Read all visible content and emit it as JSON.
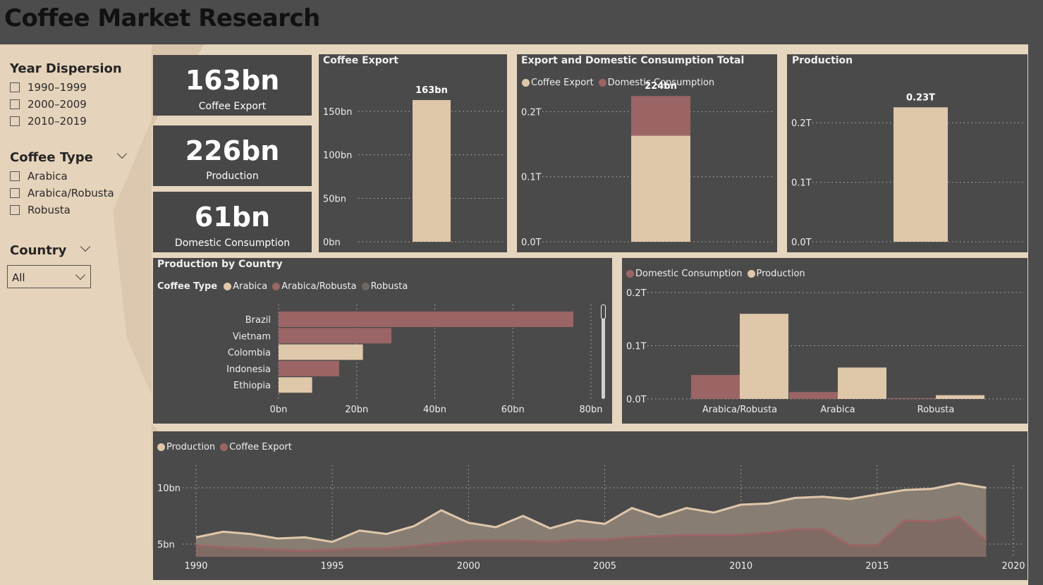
{
  "header": {
    "title": "Coffee Market Research"
  },
  "colors": {
    "beige": "#dfc7aa",
    "mauve": "#9b6565",
    "grey": "#6e6761",
    "panel": "#4b4a4a",
    "text": "#eeeeee"
  },
  "slicers": {
    "year": {
      "title": "Year Dispersion",
      "options": [
        "1990–1999",
        "2000–2009",
        "2010–2019"
      ]
    },
    "coffee_type": {
      "title": "Coffee Type",
      "options": [
        "Arabica",
        "Arabica/Robusta",
        "Robusta"
      ]
    },
    "country": {
      "title": "Country",
      "selected": "All"
    }
  },
  "kpis": [
    {
      "value": "163bn",
      "label": "Coffee Export"
    },
    {
      "value": "226bn",
      "label": "Production"
    },
    {
      "value": "61bn",
      "label": "Domestic Consumption"
    }
  ],
  "chart_data": [
    {
      "id": "coffee-export",
      "type": "bar",
      "title": "Coffee Export",
      "categories": [
        ""
      ],
      "values": [
        163
      ],
      "data_label": "163bn",
      "ylim": [
        0,
        180
      ],
      "yticks": [
        0,
        50,
        100,
        150
      ],
      "ytick_labels": [
        "0bn",
        "50bn",
        "100bn",
        "150bn"
      ],
      "grid": true
    },
    {
      "id": "export-domestic",
      "type": "bar",
      "stacked": true,
      "title": "Export and Domestic Consumption Total",
      "categories": [
        ""
      ],
      "series": [
        {
          "name": "Coffee Export",
          "values": [
            163
          ],
          "color": "#dfc7aa"
        },
        {
          "name": "Domestic Consumption",
          "values": [
            61
          ],
          "color": "#9b6565"
        }
      ],
      "data_label": "224bn",
      "ylim": [
        0,
        260
      ],
      "yticks": [
        0,
        100,
        200
      ],
      "ytick_labels": [
        "0.0T",
        "0.1T",
        "0.2T"
      ],
      "legend": "top-left",
      "grid": true
    },
    {
      "id": "production",
      "type": "bar",
      "title": "Production",
      "categories": [
        ""
      ],
      "values": [
        226
      ],
      "data_label": "0.23T",
      "ylim": [
        0,
        250
      ],
      "yticks": [
        0,
        100,
        200
      ],
      "ytick_labels": [
        "0.0T",
        "0.1T",
        "0.2T"
      ],
      "grid": true
    },
    {
      "id": "production-by-country",
      "type": "bar",
      "orientation": "horizontal",
      "title": "Production by Country",
      "legend_title": "Coffee Type",
      "legend": [
        {
          "name": "Arabica",
          "color": "#dfc7aa"
        },
        {
          "name": "Arabica/Robusta",
          "color": "#9b6565"
        },
        {
          "name": "Robusta",
          "color": "#6e6761"
        }
      ],
      "categories": [
        "Brazil",
        "Vietnam",
        "Colombia",
        "Indonesia",
        "Ethiopia"
      ],
      "values": [
        75.5,
        28.9,
        21.6,
        15.5,
        8.6
      ],
      "bar_types": [
        "Arabica/Robusta",
        "Arabica/Robusta",
        "Arabica",
        "Arabica/Robusta",
        "Arabica"
      ],
      "xlim": [
        0,
        80
      ],
      "xticks": [
        0,
        20,
        40,
        60,
        80
      ],
      "xtick_labels": [
        "0bn",
        "20bn",
        "40bn",
        "60bn",
        "80bn"
      ],
      "grid": true
    },
    {
      "id": "type-comparison",
      "type": "bar",
      "grouped": true,
      "categories": [
        "Arabica/Robusta",
        "Arabica",
        "Robusta"
      ],
      "series": [
        {
          "name": "Domestic Consumption",
          "values": [
            45,
            13,
            1.5
          ],
          "color": "#9b6565"
        },
        {
          "name": "Production",
          "values": [
            160,
            59,
            7
          ],
          "color": "#dfc7aa"
        }
      ],
      "ylim": [
        0,
        200
      ],
      "yticks": [
        0,
        100,
        200
      ],
      "ytick_labels": [
        "0.0T",
        "0.1T",
        "0.2T"
      ],
      "legend": "top-left",
      "grid": true
    },
    {
      "id": "timeline",
      "type": "area",
      "x": [
        1990,
        1991,
        1992,
        1993,
        1994,
        1995,
        1996,
        1997,
        1998,
        1999,
        2000,
        2001,
        2002,
        2003,
        2004,
        2005,
        2006,
        2007,
        2008,
        2009,
        2010,
        2011,
        2012,
        2013,
        2014,
        2015,
        2016,
        2017,
        2018,
        2019
      ],
      "series": [
        {
          "name": "Production",
          "color": "#dfc7aa",
          "values": [
            5.6,
            6.1,
            5.9,
            5.5,
            5.6,
            5.2,
            6.2,
            5.9,
            6.6,
            8.0,
            6.9,
            6.5,
            7.5,
            6.4,
            7.1,
            6.8,
            8.2,
            7.4,
            8.2,
            7.8,
            8.5,
            8.6,
            9.1,
            9.2,
            9.0,
            9.4,
            9.8,
            9.9,
            10.4,
            10.0
          ]
        },
        {
          "name": "Coffee Export",
          "color": "#9b6565",
          "values": [
            4.9,
            4.7,
            4.6,
            4.5,
            4.4,
            4.5,
            4.6,
            4.6,
            4.8,
            5.1,
            5.3,
            5.3,
            5.3,
            5.2,
            5.4,
            5.4,
            5.6,
            5.7,
            5.8,
            5.8,
            5.8,
            6.0,
            6.3,
            6.3,
            4.9,
            4.9,
            7.1,
            7.0,
            7.4,
            5.3
          ]
        }
      ],
      "xlim": [
        1990,
        2020
      ],
      "xticks": [
        1990,
        1995,
        2000,
        2005,
        2010,
        2015,
        2020
      ],
      "ylim": [
        4,
        11
      ],
      "yticks": [
        5,
        10
      ],
      "ytick_labels": [
        "5bn",
        "10bn"
      ],
      "legend": "top-left",
      "grid": true
    }
  ]
}
